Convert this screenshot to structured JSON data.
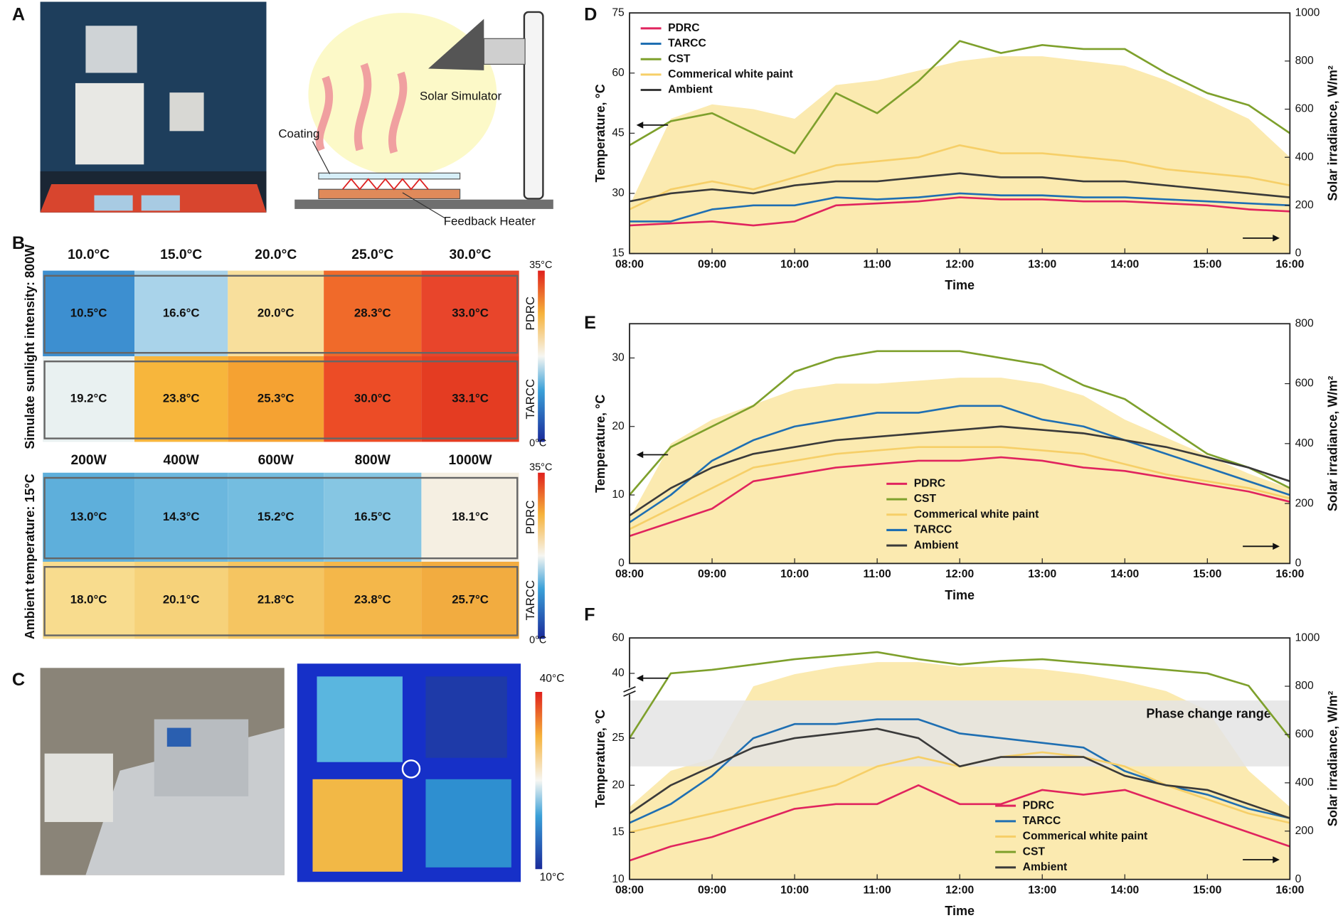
{
  "panel_a": {
    "label": "A",
    "solar_simulator": "Solar Simulator",
    "coating": "Coating",
    "feedback_heater": "Feedback Heater"
  },
  "panel_b": {
    "label": "B",
    "upper": {
      "side_label": "Simulate sunlight intensity: 800W",
      "headers": [
        "10.0°C",
        "15.0°C",
        "20.0°C",
        "25.0°C",
        "30.0°C"
      ],
      "rows": [
        {
          "name": "PDRC",
          "cells": [
            "10.5°C",
            "16.6°C",
            "20.0°C",
            "28.3°C",
            "33.0°C"
          ],
          "colors": [
            "#3d8fd0",
            "#a9d3ea",
            "#f8df9c",
            "#f06a2a",
            "#e8452b"
          ]
        },
        {
          "name": "TARCC",
          "cells": [
            "19.2°C",
            "23.8°C",
            "25.3°C",
            "30.0°C",
            "33.1°C"
          ],
          "colors": [
            "#e9f1f1",
            "#f7b63c",
            "#f5a232",
            "#ec4c26",
            "#e43c22"
          ]
        }
      ],
      "colorbar": {
        "max": "35°C",
        "min": "0°C"
      }
    },
    "lower": {
      "side_label": "Ambient temperature: 15°C",
      "headers": [
        "200W",
        "400W",
        "600W",
        "800W",
        "1000W"
      ],
      "rows": [
        {
          "name": "PDRC",
          "cells": [
            "13.0°C",
            "14.3°C",
            "15.2°C",
            "16.5°C",
            "18.1°C"
          ],
          "colors": [
            "#5eafdb",
            "#6bb7de",
            "#74bde0",
            "#86c6e3",
            "#f5efe2"
          ]
        },
        {
          "name": "TARCC",
          "cells": [
            "18.0°C",
            "20.1°C",
            "21.8°C",
            "23.8°C",
            "25.7°C"
          ],
          "colors": [
            "#f8dc8e",
            "#f6d27a",
            "#f5c561",
            "#f4b74a",
            "#f2ac40"
          ]
        }
      ],
      "colorbar": {
        "max": "35°C",
        "min": "0°C"
      }
    }
  },
  "panel_c": {
    "label": "C",
    "colorbar": {
      "max": "40°C",
      "min": "10°C"
    }
  },
  "chart_data": [
    {
      "type": "line",
      "panel": "D",
      "xlabel": "Time",
      "ylabel": "Temperature, °C",
      "y2label": "Solar irradiance, W/m²",
      "x": [
        8,
        8.5,
        9,
        9.5,
        10,
        10.5,
        11,
        11.5,
        12,
        12.5,
        13,
        13.5,
        14,
        14.5,
        15,
        15.5,
        16
      ],
      "xlim": [
        8,
        16
      ],
      "xticks": [
        {
          "value": 8,
          "label": "08:00"
        },
        {
          "value": 9,
          "label": "09:00"
        },
        {
          "value": 10,
          "label": "10:00"
        },
        {
          "value": 11,
          "label": "11:00"
        },
        {
          "value": 12,
          "label": "12:00"
        },
        {
          "value": 13,
          "label": "13:00"
        },
        {
          "value": 14,
          "label": "14:00"
        },
        {
          "value": 15,
          "label": "15:00"
        },
        {
          "value": 16,
          "label": "16:00"
        }
      ],
      "ylim": [
        15,
        75
      ],
      "yticks": [
        15,
        30,
        45,
        60,
        75
      ],
      "y2lim": [
        0,
        1000
      ],
      "y2ticks": [
        0,
        200,
        400,
        600,
        800,
        1000
      ],
      "irradiance": {
        "color": "#fbeab0",
        "axis": "y2",
        "values": [
          200,
          560,
          620,
          600,
          560,
          700,
          720,
          760,
          800,
          820,
          820,
          800,
          780,
          720,
          640,
          560,
          400
        ]
      },
      "series": [
        {
          "name": "PDRC",
          "color": "#e0245e",
          "values": [
            22,
            22.5,
            23,
            22,
            23,
            27,
            27.5,
            28,
            29,
            28.5,
            28.5,
            28,
            28,
            27.5,
            27,
            26,
            25.5
          ]
        },
        {
          "name": "TARCC",
          "color": "#1f6fb2",
          "values": [
            23,
            23,
            26,
            27,
            27,
            29,
            28.5,
            29,
            30,
            29.5,
            29.5,
            29,
            29,
            28.5,
            28,
            27.5,
            27
          ]
        },
        {
          "name": "CST",
          "color": "#7ea02c",
          "values": [
            42,
            48,
            50,
            45,
            40,
            55,
            50,
            58,
            68,
            65,
            67,
            66,
            66,
            60,
            55,
            52,
            45
          ]
        },
        {
          "name": "Commerical white paint",
          "color": "#f6cf68",
          "values": [
            26,
            31,
            33,
            31,
            34,
            37,
            38,
            39,
            42,
            40,
            40,
            39,
            38,
            36,
            35,
            34,
            32
          ]
        },
        {
          "name": "Ambient",
          "color": "#3a3a3a",
          "values": [
            28,
            30,
            31,
            30,
            32,
            33,
            33,
            34,
            35,
            34,
            34,
            33,
            33,
            32,
            31,
            30,
            29
          ]
        }
      ]
    },
    {
      "type": "line",
      "panel": "E",
      "xlabel": "Time",
      "ylabel": "Temperature, °C",
      "y2label": "Solar irradiance, W/m²",
      "x": [
        8,
        8.5,
        9,
        9.5,
        10,
        10.5,
        11,
        11.5,
        12,
        12.5,
        13,
        13.5,
        14,
        14.5,
        15,
        15.5,
        16
      ],
      "xlim": [
        8,
        16
      ],
      "xticks": [
        {
          "value": 8,
          "label": "08:00"
        },
        {
          "value": 9,
          "label": "09:00"
        },
        {
          "value": 10,
          "label": "10:00"
        },
        {
          "value": 11,
          "label": "11:00"
        },
        {
          "value": 12,
          "label": "12:00"
        },
        {
          "value": 13,
          "label": "13:00"
        },
        {
          "value": 14,
          "label": "14:00"
        },
        {
          "value": 15,
          "label": "15:00"
        },
        {
          "value": 16,
          "label": "16:00"
        }
      ],
      "ylim": [
        0,
        35
      ],
      "yticks": [
        0,
        10,
        20,
        30
      ],
      "y2lim": [
        0,
        800
      ],
      "y2ticks": [
        0,
        200,
        400,
        600,
        800
      ],
      "irradiance": {
        "color": "#fbeab0",
        "axis": "y2",
        "values": [
          150,
          400,
          480,
          530,
          580,
          600,
          600,
          610,
          620,
          620,
          600,
          560,
          480,
          420,
          360,
          300,
          250
        ]
      },
      "series": [
        {
          "name": "PDRC",
          "color": "#e0245e",
          "values": [
            4,
            6,
            8,
            12,
            13,
            14,
            14.5,
            15,
            15,
            15.5,
            15,
            14,
            13.5,
            12.5,
            11.5,
            10.5,
            9
          ]
        },
        {
          "name": "CST",
          "color": "#7ea02c",
          "values": [
            10,
            17,
            20,
            23,
            28,
            30,
            31,
            31,
            31,
            30,
            29,
            26,
            24,
            20,
            16,
            14,
            11
          ]
        },
        {
          "name": "Commerical white paint",
          "color": "#f6cf68",
          "values": [
            5,
            8,
            11,
            14,
            15,
            16,
            16.5,
            17,
            17,
            17,
            16.5,
            16,
            14.5,
            13,
            12,
            11,
            9.5
          ]
        },
        {
          "name": "TARCC",
          "color": "#1f6fb2",
          "values": [
            6,
            10,
            15,
            18,
            20,
            21,
            22,
            22,
            23,
            23,
            21,
            20,
            18,
            16,
            14,
            12,
            10
          ]
        },
        {
          "name": "Ambient",
          "color": "#3a3a3a",
          "values": [
            7,
            11,
            14,
            16,
            17,
            18,
            18.5,
            19,
            19.5,
            20,
            19.5,
            19,
            18,
            17,
            15.5,
            14,
            12
          ]
        }
      ]
    },
    {
      "type": "line",
      "panel": "F",
      "xlabel": "Time",
      "ylabel": "Temperature, °C",
      "y2label": "Solar irradiance, W/m²",
      "x": [
        8,
        8.5,
        9,
        9.5,
        10,
        10.5,
        11,
        11.5,
        12,
        12.5,
        13,
        13.5,
        14,
        14.5,
        15,
        15.5,
        16
      ],
      "xlim": [
        8,
        16
      ],
      "xticks": [
        {
          "value": 8,
          "label": "08:00"
        },
        {
          "value": 9,
          "label": "09:00"
        },
        {
          "value": 10,
          "label": "10:00"
        },
        {
          "value": 11,
          "label": "11:00"
        },
        {
          "value": 12,
          "label": "12:00"
        },
        {
          "value": 13,
          "label": "13:00"
        },
        {
          "value": 14,
          "label": "14:00"
        },
        {
          "value": 15,
          "label": "15:00"
        },
        {
          "value": 16,
          "label": "16:00"
        }
      ],
      "ylim": [
        10,
        60
      ],
      "ybreak": 30,
      "yticks": [
        10,
        15,
        20,
        25,
        40,
        60
      ],
      "y2lim": [
        0,
        1000
      ],
      "y2ticks": [
        0,
        200,
        400,
        600,
        800,
        1000
      ],
      "phase_band": {
        "label": "Phase change range",
        "range": [
          22,
          29
        ],
        "color": "#e4e4e4"
      },
      "irradiance": {
        "color": "#fbeab0",
        "axis": "y2",
        "values": [
          300,
          450,
          500,
          800,
          850,
          880,
          900,
          900,
          880,
          880,
          870,
          850,
          820,
          780,
          700,
          450,
          300
        ]
      },
      "series": [
        {
          "name": "PDRC",
          "color": "#e0245e",
          "values": [
            12,
            13.5,
            14.5,
            16,
            17.5,
            18,
            18,
            20,
            18,
            18,
            19.5,
            19,
            19.5,
            18,
            16.5,
            15,
            13.5
          ]
        },
        {
          "name": "TARCC",
          "color": "#1f6fb2",
          "values": [
            16,
            18,
            21,
            25,
            26.5,
            26.5,
            27,
            27,
            25.5,
            25,
            24.5,
            24,
            21.5,
            20,
            19,
            17.5,
            16.5
          ]
        },
        {
          "name": "Commerical white paint",
          "color": "#f6cf68",
          "values": [
            15,
            16,
            17,
            18,
            19,
            20,
            22,
            23,
            22,
            23,
            23.5,
            23,
            22,
            20,
            18.5,
            17,
            16
          ]
        },
        {
          "name": "CST",
          "color": "#7ea02c",
          "values": [
            25,
            40,
            42,
            45,
            48,
            50,
            52,
            48,
            45,
            47,
            48,
            46,
            44,
            42,
            40,
            33,
            25
          ]
        },
        {
          "name": "Ambient",
          "color": "#3a3a3a",
          "values": [
            17,
            20,
            22,
            24,
            25,
            25.5,
            26,
            25,
            22,
            23,
            23,
            23,
            21,
            20,
            19.5,
            18,
            16.5
          ]
        }
      ]
    }
  ]
}
